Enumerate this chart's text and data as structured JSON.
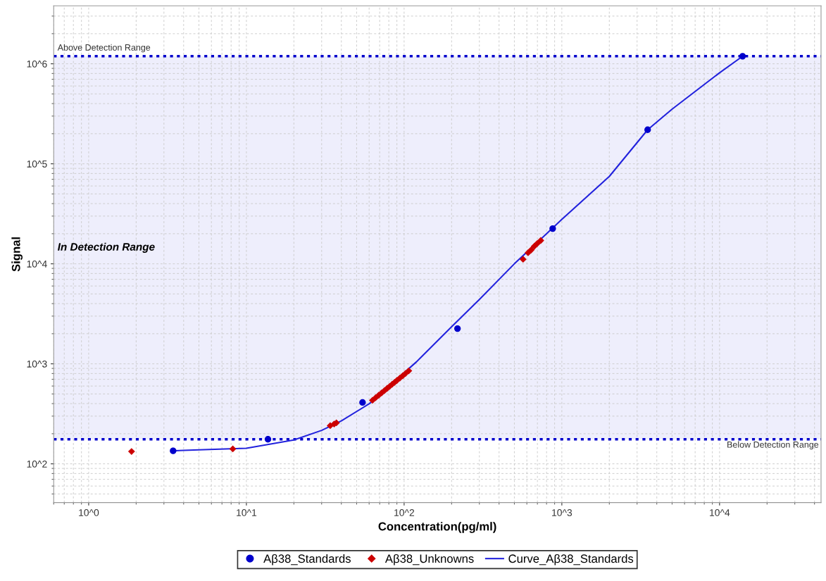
{
  "chart_data": {
    "type": "scatter",
    "xlabel": "Concentration(pg/ml)",
    "ylabel": "Signal",
    "log": "xy",
    "grid": true,
    "legend": "bottom",
    "xlim": [
      0.6,
      44000
    ],
    "ylim": [
      41,
      3800000
    ],
    "xticks": [
      {
        "value": 1,
        "label": "10^0"
      },
      {
        "value": 10,
        "label": "10^1"
      },
      {
        "value": 100,
        "label": "10^2"
      },
      {
        "value": 1000,
        "label": "10^3"
      },
      {
        "value": 10000,
        "label": "10^4"
      }
    ],
    "yticks": [
      {
        "value": 100,
        "label": "10^2"
      },
      {
        "value": 1000,
        "label": "10^3"
      },
      {
        "value": 10000,
        "label": "10^4"
      },
      {
        "value": 100000,
        "label": "10^5"
      },
      {
        "value": 1000000,
        "label": "10^6"
      }
    ],
    "bands": [
      {
        "axis": "y",
        "from": 176,
        "to": 1190000,
        "label": "In Detection Range",
        "color": "#eeeefc"
      }
    ],
    "ref_lines": [
      {
        "axis": "y",
        "value": 1190000,
        "label": "Above Detection Range",
        "color": "#0000cc",
        "line_style": "dotted"
      },
      {
        "axis": "y",
        "value": 176,
        "label": "Below Detection Range",
        "color": "#0000cc",
        "line_style": "dotted"
      }
    ],
    "series": [
      {
        "name": "Curve_Aβ38_Standards",
        "type": "line",
        "color": "#2222dd",
        "marker": "none",
        "line_style": "solid",
        "x": [
          3.43,
          5,
          10,
          20,
          30,
          40,
          60,
          120,
          200,
          300,
          500,
          1000,
          2000,
          3500,
          5000,
          10000,
          14000
        ],
        "values": [
          135,
          138,
          143,
          173,
          216,
          269,
          398,
          1050,
          2350,
          4400,
          10000,
          27800,
          74800,
          219000,
          352000,
          813000,
          1190000
        ]
      },
      {
        "name": "Aβ38_Standards",
        "color": "#0000cc",
        "marker": "circle",
        "x": [
          3.43,
          13.7,
          54.5,
          218,
          875,
          3500,
          14000
        ],
        "values": [
          135,
          176,
          411,
          2250,
          22500,
          219000,
          1190000
        ]
      },
      {
        "name": "Aβ38_Unknowns",
        "color": "#cc0000",
        "marker": "diamond",
        "x": [
          1.87,
          8.2,
          34,
          36,
          37.2,
          63,
          66,
          69,
          72,
          75,
          78,
          81,
          84,
          87,
          90,
          94,
          98,
          102,
          107,
          568,
          611,
          640,
          670,
          700,
          735
        ],
        "values": [
          133,
          141,
          241,
          250,
          257,
          432,
          459,
          485,
          512,
          540,
          568,
          596,
          624,
          653,
          682,
          721,
          760,
          801,
          851,
          11100,
          12900,
          13800,
          15000,
          16000,
          17100
        ]
      }
    ]
  }
}
